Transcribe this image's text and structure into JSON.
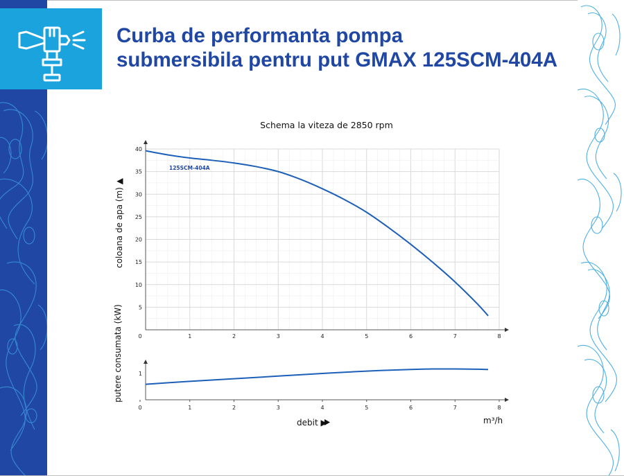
{
  "title": {
    "line1": "Curba de performanta pompa",
    "line2": "submersibila pentru put GMAX 125SCM-404A"
  },
  "colors": {
    "brand_blue": "#1f47a3",
    "logo_bg": "#1aa3dc",
    "curve": "#1c5fb8",
    "grid": "#d9d9d9"
  },
  "logo": {
    "icon": "pump-icon"
  },
  "chart_data": [
    {
      "type": "line",
      "title": "Schema la viteza de 2850 rpm",
      "ylabel": "coloana de apa (m) ▲",
      "xlim": [
        0,
        8
      ],
      "ylim": [
        0,
        40
      ],
      "xticks": [
        "0",
        "1",
        "2",
        "3",
        "4",
        "5",
        "6",
        "7",
        "8"
      ],
      "yticks": [
        "5",
        "10",
        "15",
        "20",
        "25",
        "30",
        "35",
        "40"
      ],
      "grid": true,
      "series": [
        {
          "name": "125SCM-404A",
          "x": [
            0,
            0.5,
            1,
            1.5,
            2,
            2.5,
            3,
            3.5,
            4,
            4.5,
            5,
            5.5,
            6,
            6.5,
            7,
            7.5,
            7.75
          ],
          "y": [
            39.6,
            38.7,
            38.0,
            37.5,
            36.9,
            36.1,
            35.0,
            33.3,
            31.2,
            28.8,
            26.0,
            22.6,
            18.9,
            14.9,
            10.6,
            5.8,
            3.1
          ]
        }
      ]
    },
    {
      "type": "line",
      "ylabel": "putere consumata (kW)",
      "xlabel": "debit ▶",
      "xunit": "m³/h",
      "xlim": [
        0,
        8
      ],
      "ylim": [
        0,
        1.5
      ],
      "xticks": [
        "0",
        "1",
        "2",
        "3",
        "4",
        "5",
        "6",
        "7",
        "8"
      ],
      "yticks": [
        "1"
      ],
      "grid": false,
      "series": [
        {
          "x": [
            0,
            1,
            2,
            3,
            4,
            5,
            6,
            6.5,
            7,
            7.5,
            7.75
          ],
          "y": [
            0.59,
            0.7,
            0.8,
            0.9,
            1.0,
            1.09,
            1.15,
            1.17,
            1.17,
            1.16,
            1.15
          ]
        }
      ]
    }
  ]
}
